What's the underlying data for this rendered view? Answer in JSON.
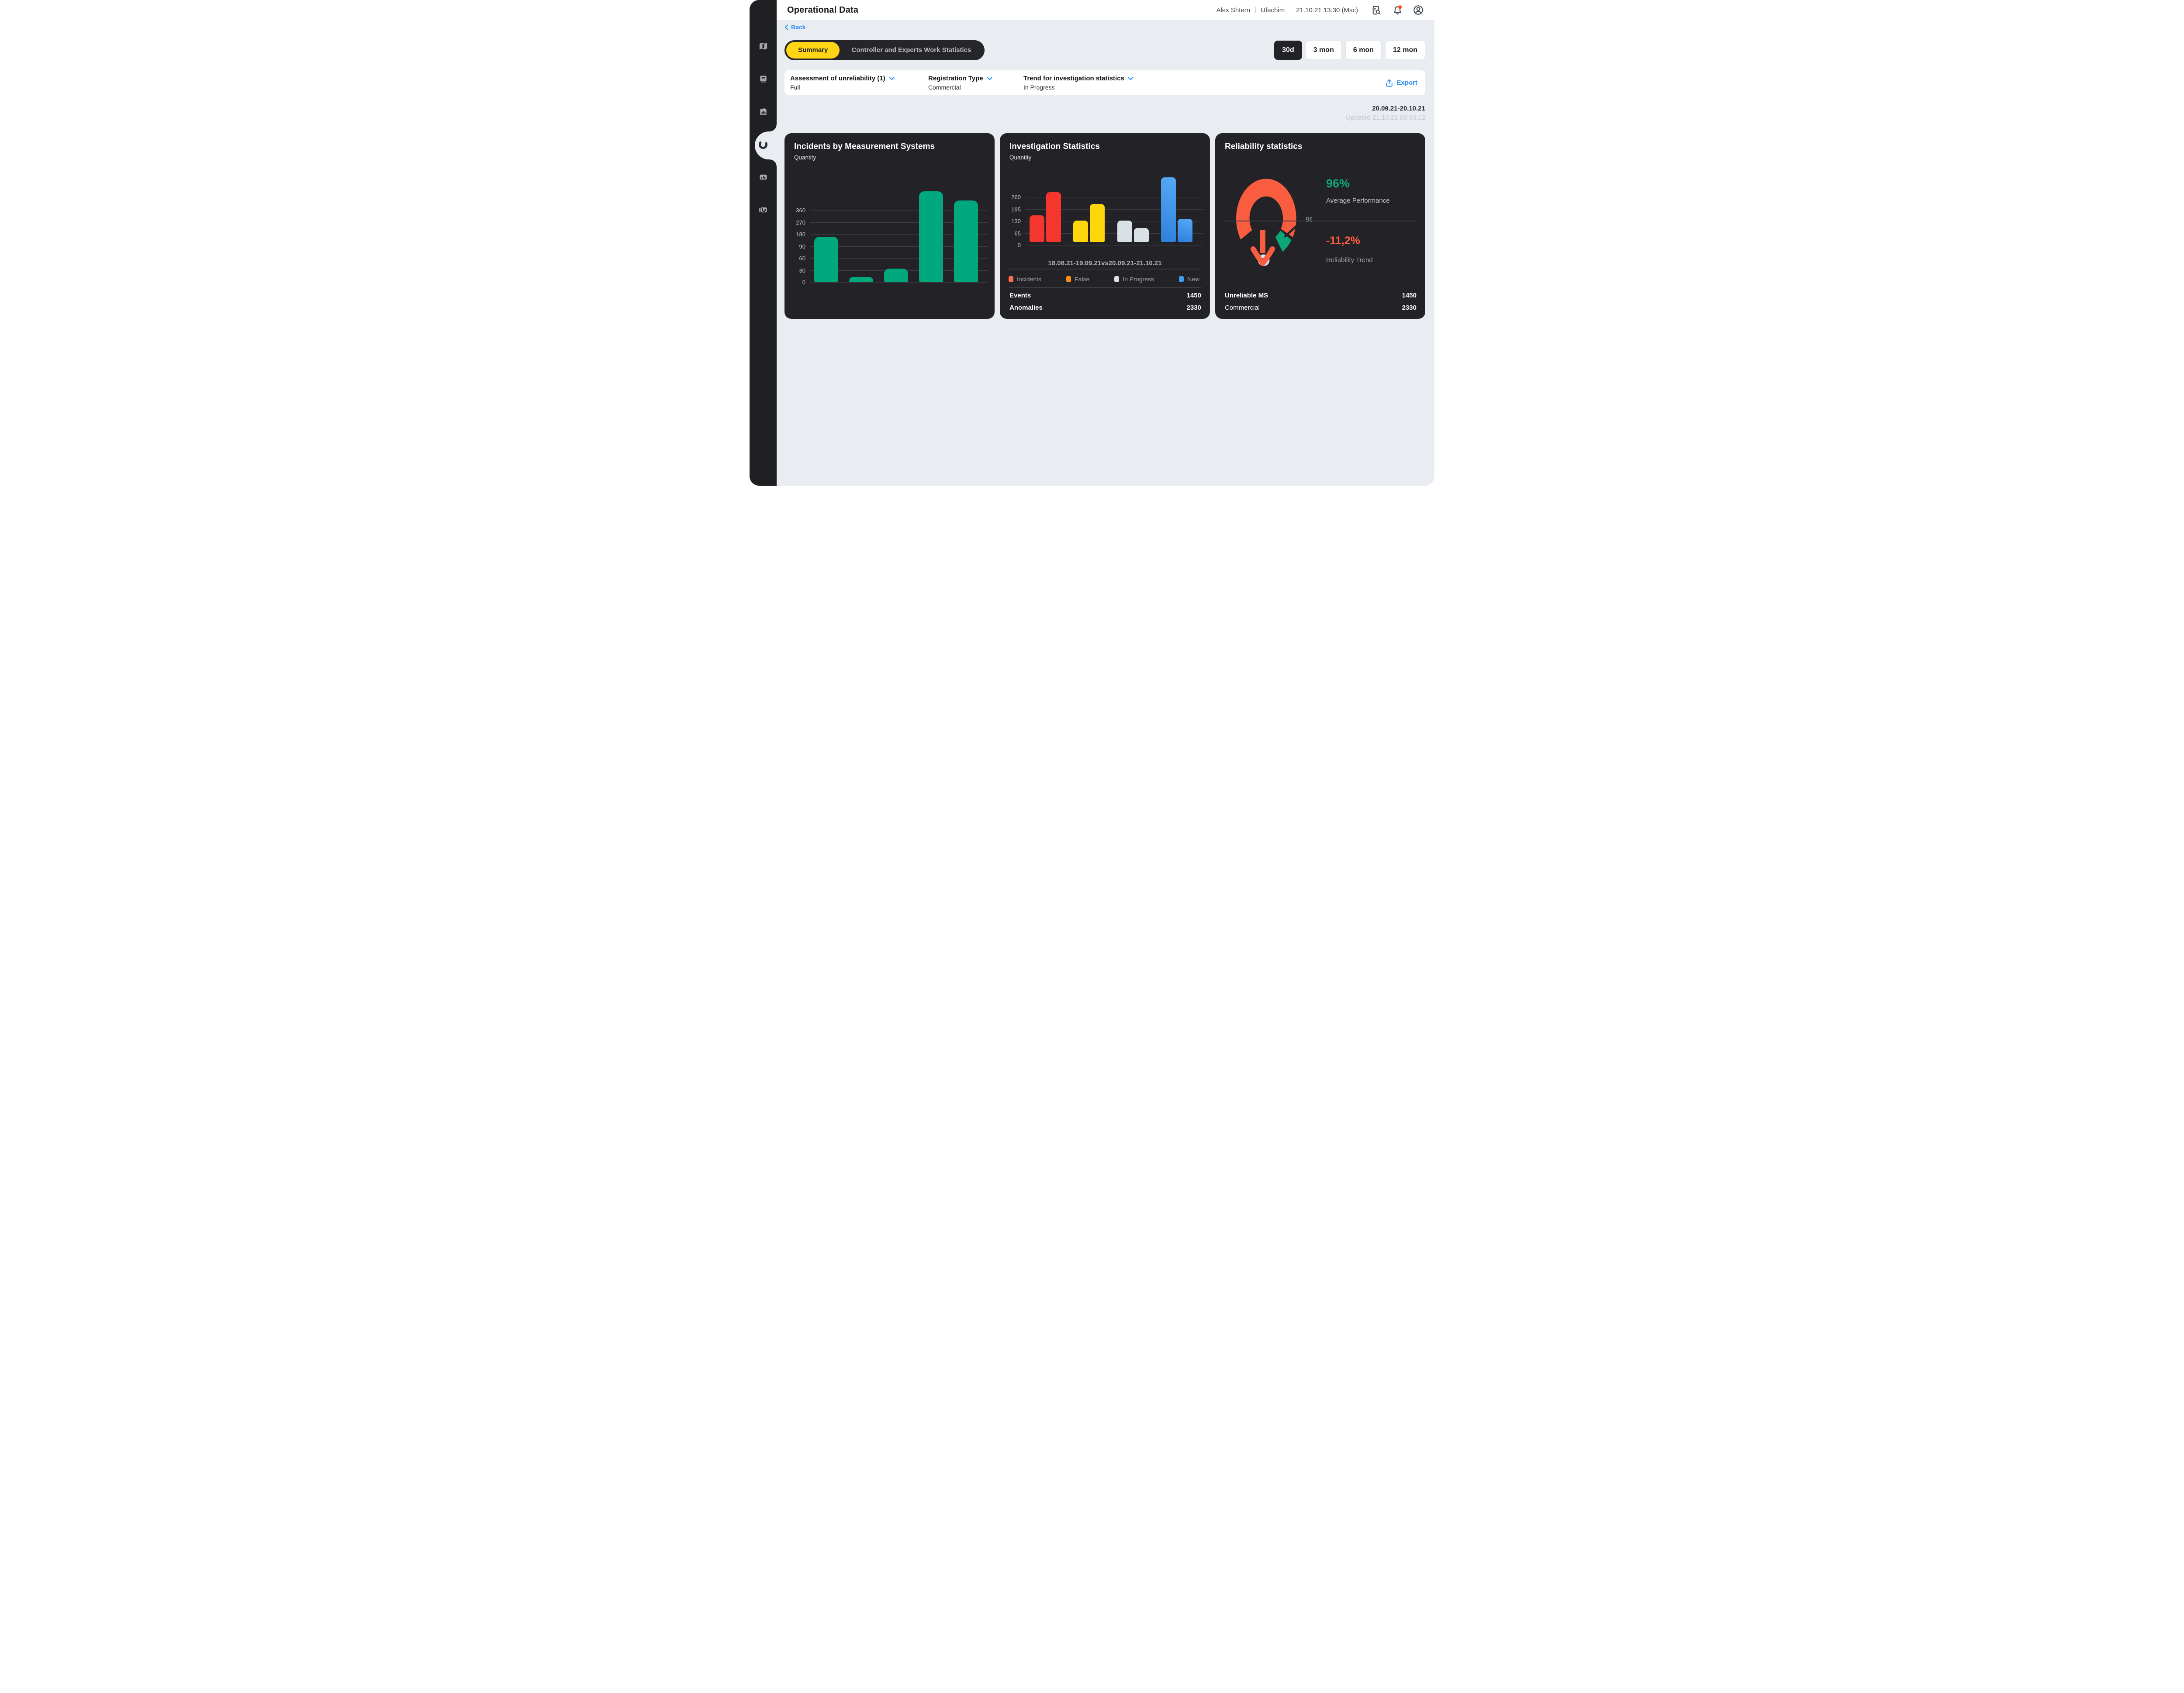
{
  "header": {
    "title": "Operational Data",
    "user_name": "Alex Shtern",
    "user_org": "Ufachim",
    "datetime": "21.10.21 13:30 (Msc)"
  },
  "nav": {
    "back_label": "Back",
    "sidebar_items": [
      {
        "icon": "map",
        "active": false
      },
      {
        "icon": "journal",
        "active": false
      },
      {
        "icon": "report",
        "active": false
      },
      {
        "icon": "donut",
        "active": true
      },
      {
        "icon": "bar-chart",
        "active": false
      },
      {
        "icon": "gauge",
        "active": false
      }
    ]
  },
  "tabs": [
    {
      "label": "Summary",
      "active": true
    },
    {
      "label": "Controller and Experts Work Statistics",
      "active": false
    }
  ],
  "time_ranges": [
    {
      "label": "30d",
      "active": true
    },
    {
      "label": "3 mon",
      "active": false
    },
    {
      "label": "6 mon",
      "active": false
    },
    {
      "label": "12 mon",
      "active": false
    }
  ],
  "filters": [
    {
      "label": "Assessment of unreliability (1)",
      "value": "Full"
    },
    {
      "label": "Registration Type",
      "value": "Commercial"
    },
    {
      "label": "Trend for investigation statistics",
      "value": "In Progress"
    }
  ],
  "export_label": "Export",
  "period": {
    "range": "20.09.21-20.10.21",
    "updated": "Updated 21.10.21 05:33:12"
  },
  "cards": {
    "incidents": {
      "title": "Incidents by Measurement Systems",
      "subtitle": "Quantity"
    },
    "investigation": {
      "title": "Investigation Statistics",
      "subtitle": "Quantity",
      "x_label": "18.08.21-19.09.21vs20.09.21-21.10.21",
      "legend": [
        {
          "label": "Incidents",
          "color": "#FF6A52"
        },
        {
          "label": "False",
          "color": "#FF8E16"
        },
        {
          "label": "In Progress",
          "color": "#D8E1E5"
        },
        {
          "label": "New",
          "color": "#3E9BF0"
        }
      ],
      "stats": [
        {
          "label": "Events",
          "value": "1450",
          "bold": true
        },
        {
          "label": "Anomalies",
          "value": "2330",
          "bold": true
        }
      ]
    },
    "reliability": {
      "title": "Reliability statistics",
      "gauge_label": "96%",
      "performance_value": "96%",
      "performance_label": "Average Performance",
      "trend_value": "-11,2%",
      "trend_label": "Reliability Trend",
      "stats": [
        {
          "label": "Unreliable MS",
          "value": "1450",
          "bold": true
        },
        {
          "label": "Commercial",
          "value": "2330",
          "bold": false
        }
      ]
    }
  },
  "chart_data": [
    {
      "type": "bar",
      "title": "Incidents by Measurement Systems",
      "ylabel": "Quantity",
      "y_ticks": [
        360,
        270,
        180,
        90,
        60,
        30,
        0
      ],
      "nonlinear_axis": true,
      "values": [
        165,
        15,
        36,
        505,
        440
      ],
      "height_pct": [
        50,
        6,
        15,
        100,
        90
      ],
      "bar_color": "#00A87D",
      "grid": true,
      "legend_position": "none"
    },
    {
      "type": "bar",
      "title": "Investigation Statistics",
      "ylabel": "Quantity",
      "y_ticks": [
        260,
        195,
        130,
        65,
        0
      ],
      "categories": [
        "Incidents",
        "False",
        "In Progress",
        "New"
      ],
      "series": [
        {
          "name": "18.08.21-19.09.21",
          "values": [
            145,
            115,
            115,
            350
          ]
        },
        {
          "name": "20.09.21-21.10.21",
          "values": [
            270,
            205,
            75,
            125
          ]
        }
      ],
      "bar_colors": {
        "Incidents": "#F4362C",
        "False": "#FFD60A",
        "In Progress": "#D8E1E5",
        "New": "#3E9BF0"
      },
      "grid": true,
      "legend_position": "bottom"
    },
    {
      "type": "gauge",
      "value_pct": 96,
      "label": "96%",
      "arc_color": "#FA5C40",
      "segment_color": "#0CA678"
    }
  ],
  "colors": {
    "page_bg": "#E9EDF2",
    "sidebar_bg": "#202023",
    "card_bg": "#232327",
    "accent_blue": "#2F8FF7",
    "accent_yellow": "#FFD516",
    "green": "#0EA873",
    "orange": "#FA5C40",
    "notification_dot": "#F4502C"
  }
}
